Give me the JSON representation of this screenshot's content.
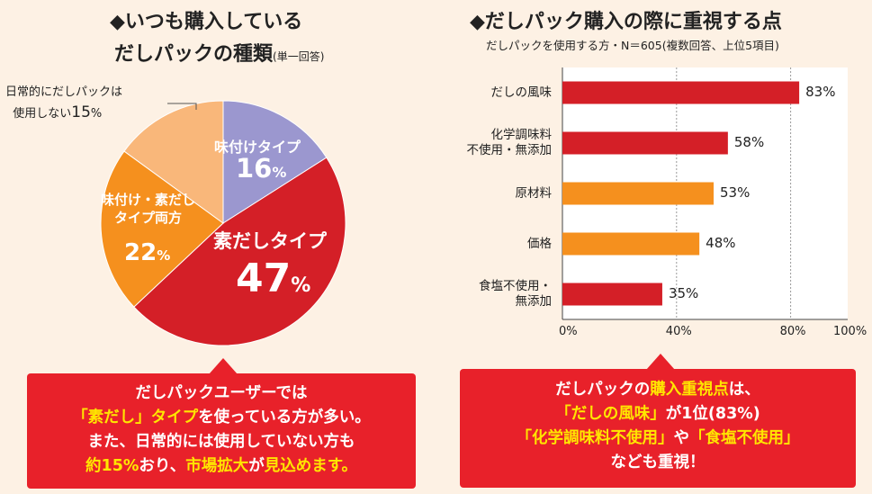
{
  "left": {
    "title_line1": "◆いつも購入している",
    "title_line2": "だしパックの種類",
    "title_note": "(単一回答)"
  },
  "right": {
    "title": "◆だしパック購入の際に重視する点",
    "subtitle": "だしパックを使用する方・N＝605(複数回答、上位5項目)"
  },
  "chart_data": [
    {
      "type": "pie",
      "slices": [
        {
          "label": "味付けタイプ",
          "value": 16,
          "color": "#9b97cf"
        },
        {
          "label": "素だしタイプ",
          "value": 47,
          "color": "#d41f27"
        },
        {
          "label": "味付け・素だしタイプ両方",
          "value": 22,
          "color": "#f5901e"
        },
        {
          "label": "日常的にだしパックは使用しない",
          "value": 15,
          "color": "#f9b77a"
        }
      ],
      "labels": {
        "s1_line1": "味付けタイプ",
        "s1_pct": "16",
        "s2_line1": "素だしタイプ",
        "s2_pct": "47",
        "s3_line1": "味付け・素だし",
        "s3_line2": "タイプ両方",
        "s3_pct": "22",
        "s4_line1": "日常的にだしパックは",
        "s4_line2": "使用しない",
        "s4_pct": "15",
        "pct_sign": "%"
      }
    },
    {
      "type": "bar",
      "orientation": "horizontal",
      "categories": [
        "だしの風味",
        "化学調味料\n不使用・無添加",
        "原材料",
        "価格",
        "食塩不使用・\n無添加"
      ],
      "values": [
        83,
        58,
        53,
        48,
        35
      ],
      "value_labels": [
        "83%",
        "58%",
        "53%",
        "48%",
        "35%"
      ],
      "colors": [
        "#d41f27",
        "#d41f27",
        "#f5901e",
        "#f5901e",
        "#d41f27"
      ],
      "xlim": [
        0,
        100
      ],
      "xticks": [
        "0%",
        "40%",
        "80%",
        "100%"
      ],
      "grid": "dashed at 40% and 80%"
    }
  ],
  "callout_left": {
    "l1": "だしパックユーザーでは",
    "l2a": "「素だし」タイプ",
    "l2b": "を使っている方が多い。",
    "l3": "また、日常的には使用していない方も",
    "l4a": "約15%",
    "l4b": "おり、",
    "l4c": "市場拡大",
    "l4d": "が",
    "l4e": "見込めます。"
  },
  "callout_right": {
    "l1a": "だしパックの",
    "l1b": "購入重視点",
    "l1c": "は、",
    "l2a": "「だしの風味」",
    "l2b": "が1位(83%)",
    "l3a": "「化学調味料不使用」",
    "l3b": "や",
    "l3c": "「食塩不使用」",
    "l4": "なども重視！"
  }
}
